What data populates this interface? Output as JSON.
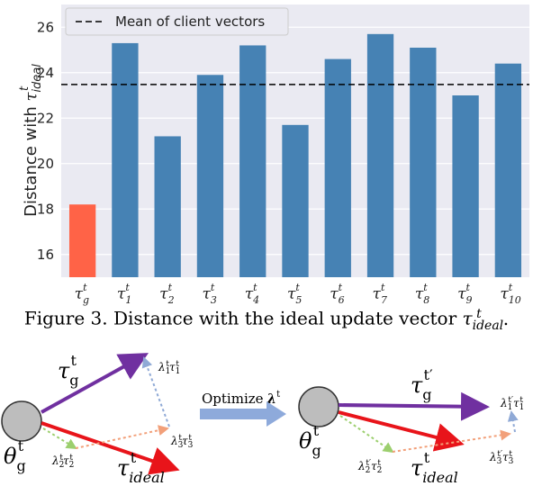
{
  "chart_data": {
    "type": "bar",
    "categories": [
      "τ_g^t",
      "τ_1^t",
      "τ_2^t",
      "τ_3^t",
      "τ_4^t",
      "τ_5^t",
      "τ_6^t",
      "τ_7^t",
      "τ_8^t",
      "τ_9^t",
      "τ_10^t"
    ],
    "category_labels": [
      {
        "base": "τ",
        "sub": "g",
        "sup": "t"
      },
      {
        "base": "τ",
        "sub": "1",
        "sup": "t"
      },
      {
        "base": "τ",
        "sub": "2",
        "sup": "t"
      },
      {
        "base": "τ",
        "sub": "3",
        "sup": "t"
      },
      {
        "base": "τ",
        "sub": "4",
        "sup": "t"
      },
      {
        "base": "τ",
        "sub": "5",
        "sup": "t"
      },
      {
        "base": "τ",
        "sub": "6",
        "sup": "t"
      },
      {
        "base": "τ",
        "sub": "7",
        "sup": "t"
      },
      {
        "base": "τ",
        "sub": "8",
        "sup": "t"
      },
      {
        "base": "τ",
        "sub": "9",
        "sup": "t"
      },
      {
        "base": "τ",
        "sub": "10",
        "sup": "t"
      }
    ],
    "values": [
      18.2,
      25.3,
      21.2,
      23.9,
      25.2,
      21.7,
      24.6,
      25.7,
      25.1,
      23.0,
      24.4
    ],
    "bar_colors": [
      "#ff6347",
      "#4682b4",
      "#4682b4",
      "#4682b4",
      "#4682b4",
      "#4682b4",
      "#4682b4",
      "#4682b4",
      "#4682b4",
      "#4682b4",
      "#4682b4"
    ],
    "ylabel": {
      "text": "Distance with ",
      "symbol": "τ",
      "sub": "ideal",
      "sup": "t"
    },
    "yticks": [
      16,
      18,
      20,
      22,
      24,
      26
    ],
    "ylim": [
      15.0,
      27.0
    ],
    "mean_line": {
      "value": 23.48,
      "label": "Mean of client vectors",
      "style": "dashed",
      "color": "#000000"
    },
    "legend_position": "top-left",
    "grid": true
  },
  "caption": {
    "text": "Figure 3. Distance with the ideal update vector ",
    "symbol": "τ",
    "sub": "ideal",
    "sup": "t",
    "suffix": "."
  },
  "diagram": {
    "left": {
      "theta_label": {
        "base": "θ",
        "sub": "g",
        "sup": "t"
      },
      "tau_g_label": {
        "base": "τ",
        "sub": "g",
        "sup": "t"
      },
      "tau_ideal_label": {
        "base": "τ",
        "sub": "ideal",
        "sup": "t"
      },
      "lambda1": {
        "lam": "λ",
        "lsub": "1",
        "lsup": "t",
        "tau": "τ",
        "tsub": "1",
        "tsup": "t"
      },
      "lambda2": {
        "lam": "λ",
        "lsub": "2",
        "lsup": "t",
        "tau": "τ",
        "tsub": "2",
        "tsup": "t"
      },
      "lambda3": {
        "lam": "λ",
        "lsub": "3",
        "lsup": "t",
        "tau": "τ",
        "tsub": "3",
        "tsup": "t"
      }
    },
    "optimize_label": "Optimize",
    "optimize_symbol": {
      "base": "λ",
      "sup": "t"
    },
    "right": {
      "theta_label": {
        "base": "θ",
        "sub": "g",
        "sup": "t"
      },
      "tau_g_label": {
        "base": "τ",
        "sub": "g",
        "sup": "t′"
      },
      "tau_ideal_label": {
        "base": "τ",
        "sub": "ideal",
        "sup": "t"
      },
      "lambda1": {
        "lam": "λ",
        "lsub": "1",
        "lsup": "t′",
        "tau": "τ",
        "tsub": "1",
        "tsup": "t"
      },
      "lambda2": {
        "lam": "λ",
        "lsub": "2",
        "lsup": "t′",
        "tau": "τ",
        "tsub": "2",
        "tsup": "t"
      },
      "lambda3": {
        "lam": "λ",
        "lsub": "3",
        "lsup": "t′",
        "tau": "τ",
        "tsub": "3",
        "tsup": "t"
      }
    },
    "colors": {
      "tau_g": "#7030a0",
      "tau_ideal": "#e8141a",
      "lambda1": "#8fa9d6",
      "lambda2": "#9ccf6e",
      "lambda3": "#f2a07a",
      "node_fill": "#bdbdbd",
      "optimize_arrow": "#8eaadb"
    }
  }
}
